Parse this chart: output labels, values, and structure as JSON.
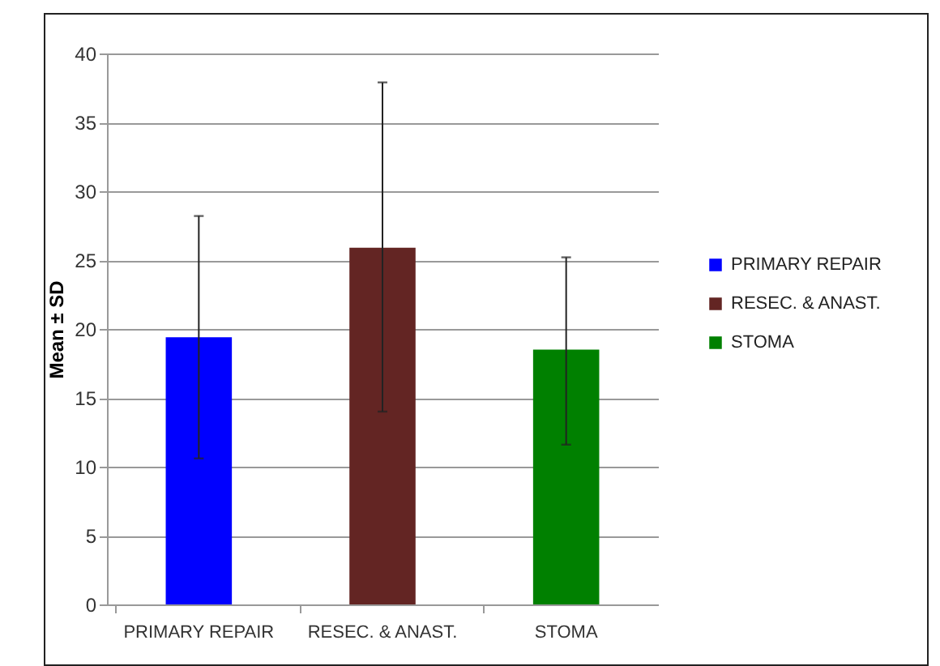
{
  "chart_data": {
    "type": "bar",
    "ylabel": "Mean ± SD",
    "categories": [
      "PRIMARY REPAIR",
      "RESEC. & ANAST.",
      "STOMA"
    ],
    "series": [
      {
        "name": "PRIMARY REPAIR",
        "color": "#0000ff",
        "values": [
          19.4,
          null,
          null
        ],
        "errors": [
          [
            10.6,
            28.2
          ],
          null,
          null
        ]
      },
      {
        "name": "RESEC. & ANAST.",
        "color": "#632523",
        "values": [
          null,
          25.9,
          null
        ],
        "errors": [
          null,
          [
            14,
            37.9
          ],
          null
        ]
      },
      {
        "name": "STOMA",
        "color": "#008000",
        "values": [
          null,
          null,
          18.5
        ],
        "errors": [
          null,
          null,
          [
            11.6,
            25.2
          ]
        ]
      }
    ],
    "ylim": [
      0,
      40
    ],
    "yticks": [
      0,
      5,
      10,
      15,
      20,
      25,
      30,
      35,
      40
    ],
    "grid": "y",
    "legend": "right"
  }
}
